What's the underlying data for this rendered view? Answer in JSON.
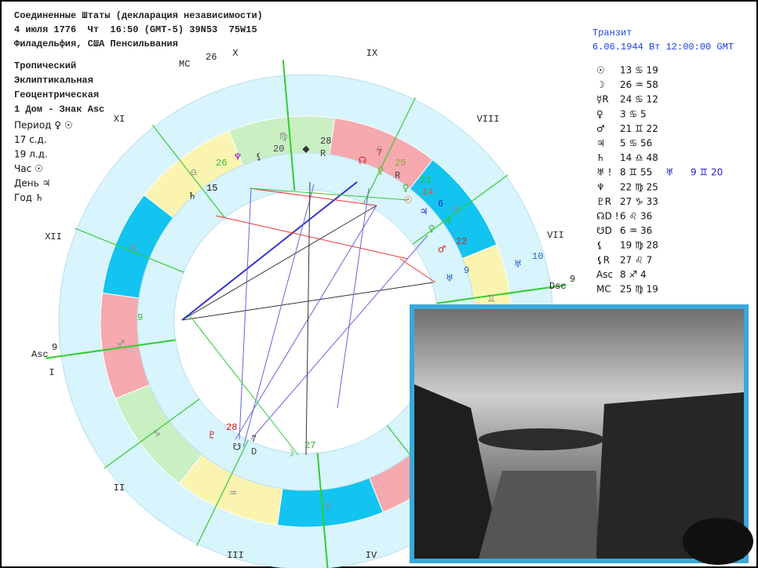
{
  "header": {
    "title": "Соединенные Штаты (декларация независимости)",
    "date_line": "4 июля 1776  Чт  16:50 (GMT-5) 39N53  75W15",
    "place": "Филадельфия, США Пенсильвания"
  },
  "settings": [
    "Тропический",
    "Эклиптикальная",
    "Геоцентрическая",
    "1 Дом - Знак Asc"
  ],
  "period": [
    "Период ♀ ☉",
    "17 с.д.",
    "19 л.д.",
    "Час ☉",
    "День ♃",
    "Год ♄"
  ],
  "transit": {
    "title": "Транзит",
    "date": "6.06.1944 Вт 12:00:00 GMT"
  },
  "positions": [
    {
      "glyph": "☉",
      "text": "13 ♋ 19"
    },
    {
      "glyph": "☽",
      "text": "26 ♒ 58"
    },
    {
      "glyph": "☿R",
      "text": "24 ♋ 12"
    },
    {
      "glyph": "♀",
      "text": " 3 ♋  5"
    },
    {
      "glyph": "♂",
      "text": "21 ♊ 22"
    },
    {
      "glyph": "♃",
      "text": " 5 ♋ 56"
    },
    {
      "glyph": "♄",
      "text": "14 ♎ 48"
    },
    {
      "glyph": "♅ !",
      "text": " 8 ♊ 55",
      "extra_glyph": "♅",
      "extra_text": "9 ♊ 20"
    },
    {
      "glyph": "♆",
      "text": "22 ♍ 25"
    },
    {
      "glyph": "♇R",
      "text": "27 ♑ 33"
    },
    {
      "glyph": "☊D !",
      "text": " 6 ♌ 36"
    },
    {
      "glyph": "☋D",
      "text": " 6 ♒ 36"
    },
    {
      "glyph": "⚸",
      "text": "19 ♍ 28"
    },
    {
      "glyph": "⚸R",
      "text": "27 ♌  7"
    },
    {
      "glyph": "Asc",
      "text": " 8 ♐  4"
    },
    {
      "glyph": "MC",
      "text": "25 ♍ 19"
    }
  ],
  "houses": [
    "X",
    "IX",
    "VIII",
    "VII",
    "XI",
    "XII",
    "I",
    "II",
    "III",
    "IV"
  ],
  "signs": [
    "♊",
    "♋",
    "♌",
    "♍",
    "♎",
    "♏",
    "♐",
    "♑",
    "♒",
    "♓"
  ],
  "axes": [
    {
      "label": "Asc",
      "degree": 9
    },
    {
      "label": "Dsc",
      "degree": 9
    },
    {
      "label": "MC",
      "degree": 26
    }
  ],
  "wheel_points": [
    {
      "glyph": "♆"
    },
    {
      "glyph": "⚸",
      "degree": 20
    },
    {
      "glyph": "◆",
      "degree": 28,
      "note": "R"
    },
    {
      "glyph": "☊",
      "degree": 7
    },
    {
      "glyph": "♀",
      "degree": 25,
      "note": "R"
    },
    {
      "glyph": "♀",
      "degree": 23
    },
    {
      "glyph": "☉",
      "degree": 14
    },
    {
      "glyph": "♃",
      "degree": 6
    },
    {
      "glyph": "♀",
      "degree": 4
    },
    {
      "glyph": "♂",
      "degree": 22
    },
    {
      "glyph": "♅",
      "degree": 9
    },
    {
      "glyph": "♅",
      "degree": 10
    },
    {
      "glyph": "♄",
      "degree": 15
    },
    {
      "glyph": "♇",
      "degree": 28
    },
    {
      "glyph": "☋",
      "degree": 7,
      "note": "D"
    },
    {
      "glyph": "☽",
      "degree": 27
    },
    {
      "glyph": "",
      "degree": 26
    },
    {
      "glyph": "",
      "degree": 9
    }
  ]
}
